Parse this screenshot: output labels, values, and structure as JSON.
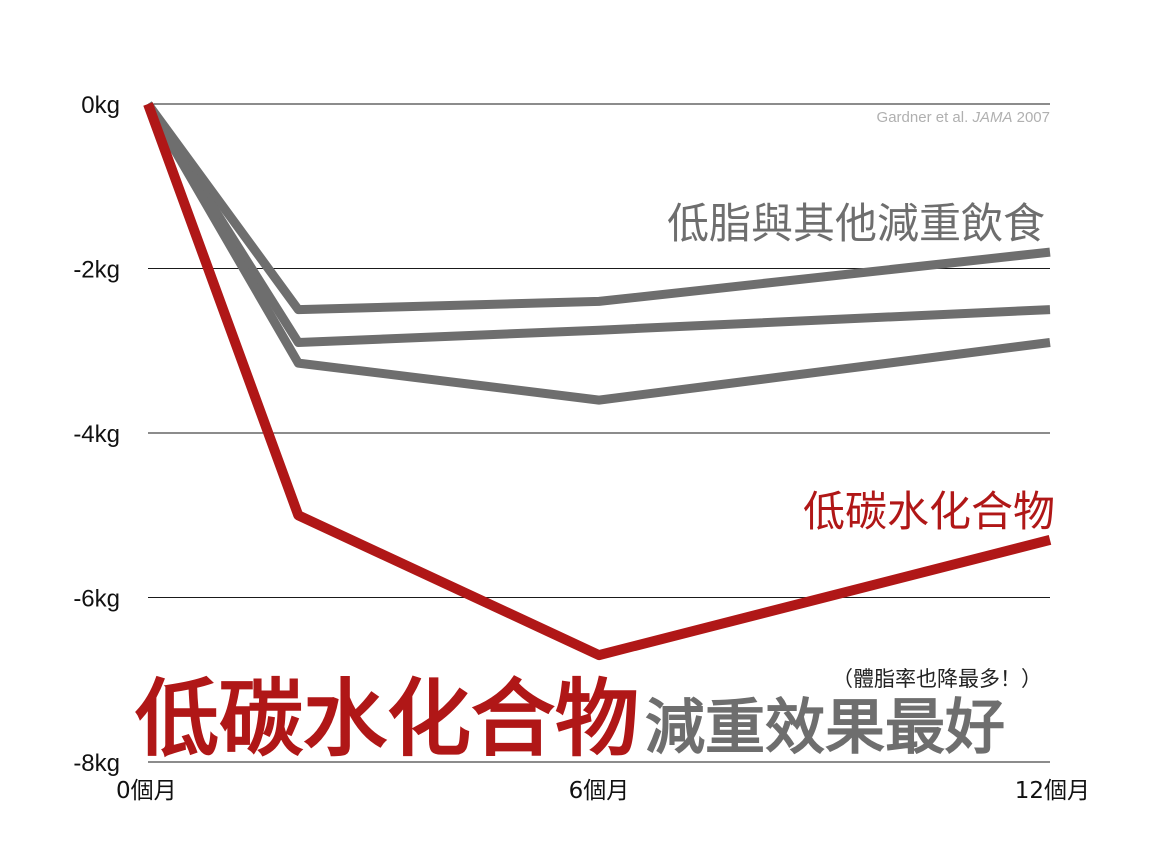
{
  "chart_data": {
    "type": "line",
    "x": [
      0,
      2,
      6,
      12
    ],
    "x_tick_labels": [
      "0個月",
      "6個月",
      "12個月"
    ],
    "x_tick_values": [
      0,
      6,
      12
    ],
    "y_tick_labels": [
      "0kg",
      "-2kg",
      "-4kg",
      "-6kg",
      "-8kg"
    ],
    "y_tick_values": [
      0,
      -2,
      -4,
      -6,
      -8
    ],
    "ylim": [
      -8,
      0
    ],
    "xlim": [
      0,
      12
    ],
    "grid": true,
    "series": [
      {
        "name": "低碳水化合物",
        "values": [
          0,
          -5.0,
          -6.7,
          -5.3
        ],
        "color": "#b01717"
      },
      {
        "values": [
          0,
          -2.5,
          -2.4,
          -1.8
        ],
        "color": "#6e6e6e"
      },
      {
        "values": [
          0,
          -2.9,
          -2.75,
          -2.5
        ],
        "color": "#6e6e6e"
      },
      {
        "values": [
          0,
          -3.15,
          -3.6,
          -2.9
        ],
        "color": "#6e6e6e"
      }
    ],
    "annotations": {
      "gray_label": "低脂與其他減重飲食",
      "red_label": "低碳水化合物",
      "source_prefix": "Gardner et al. ",
      "source_journal": "JAMA",
      "source_year": " 2007",
      "headline_red": "低碳水化合物",
      "headline_gray": "減重效果最好",
      "note": "（體脂率也降最多！）"
    }
  }
}
